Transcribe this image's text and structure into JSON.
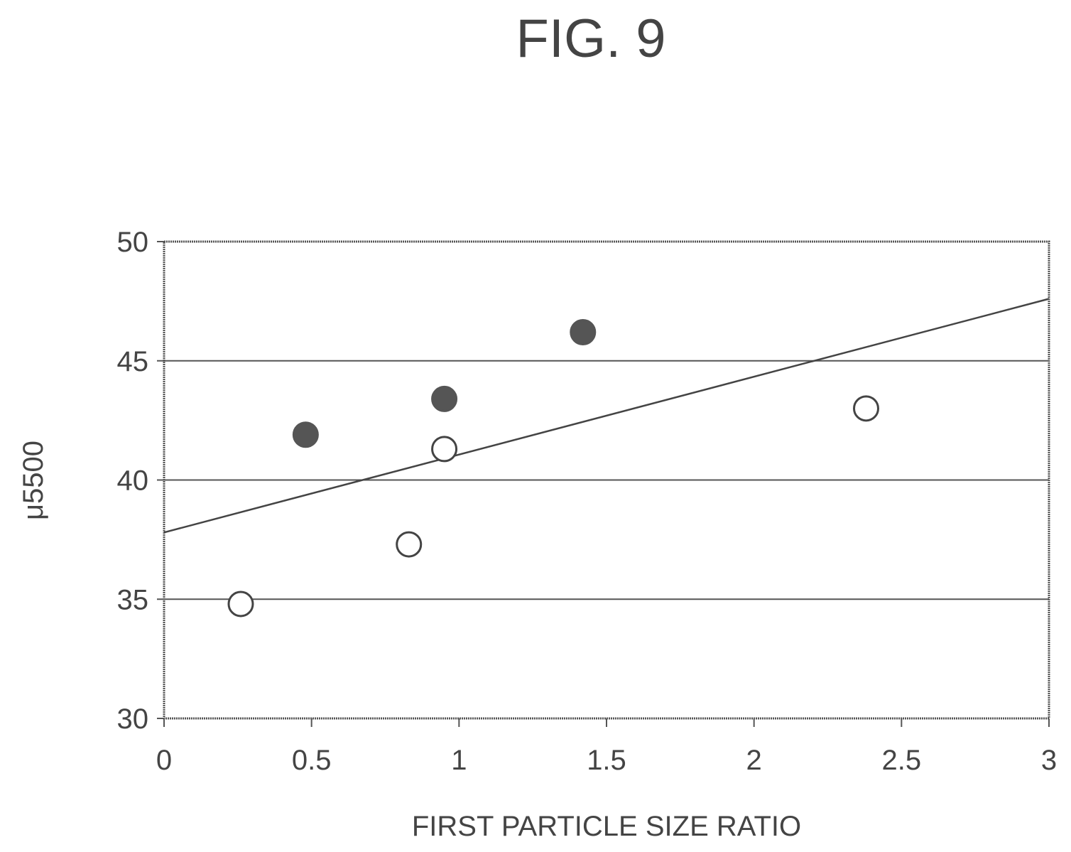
{
  "figure": {
    "title": "FIG. 9"
  },
  "chart_data": {
    "type": "scatter",
    "title": "FIG. 9",
    "xlabel": "FIRST PARTICLE SIZE RATIO",
    "ylabel": "μ5500",
    "xlim": [
      0,
      3
    ],
    "ylim": [
      30,
      50
    ],
    "x_ticks": [
      "0",
      "0.5",
      "1",
      "1.5",
      "2",
      "2.5",
      "3"
    ],
    "y_ticks": [
      "30",
      "35",
      "40",
      "45",
      "50"
    ],
    "grid": "horizontal",
    "legend": "none",
    "series": [
      {
        "marker": "filled-circle",
        "color": "#555555",
        "points": [
          {
            "x": 0.48,
            "y": 41.9
          },
          {
            "x": 0.95,
            "y": 43.4
          },
          {
            "x": 1.42,
            "y": 46.2
          }
        ]
      },
      {
        "marker": "open-circle",
        "color": "#444444",
        "points": [
          {
            "x": 0.26,
            "y": 34.8
          },
          {
            "x": 0.83,
            "y": 37.3
          },
          {
            "x": 0.95,
            "y": 41.3
          },
          {
            "x": 2.38,
            "y": 43.0
          }
        ]
      }
    ],
    "trendline": {
      "x": [
        0,
        3
      ],
      "y": [
        37.8,
        47.6
      ]
    }
  }
}
